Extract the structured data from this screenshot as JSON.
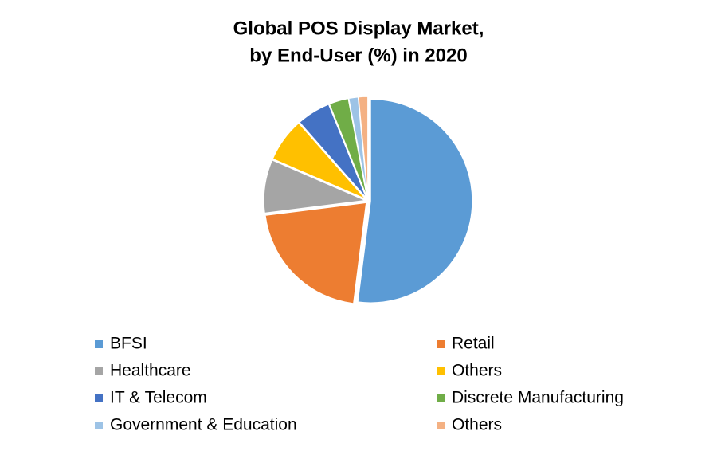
{
  "chart_data": {
    "type": "pie",
    "title": [
      "Global POS Display Market,",
      "by End-User (%) in 2020"
    ],
    "categories": [
      "BFSI",
      "Retail",
      "Healthcare",
      "Others",
      "IT & Telecom",
      "Discrete Manufacturing",
      "Government & Education",
      "Others"
    ],
    "values": [
      52,
      21,
      8.5,
      7,
      5.4,
      3.1,
      1.5,
      1.5
    ],
    "colors": [
      "#5B9BD5",
      "#ED7D31",
      "#A5A5A5",
      "#FFC000",
      "#4472C4",
      "#70AD47",
      "#9DC3E6",
      "#F4B183"
    ],
    "legend": "bottom"
  }
}
